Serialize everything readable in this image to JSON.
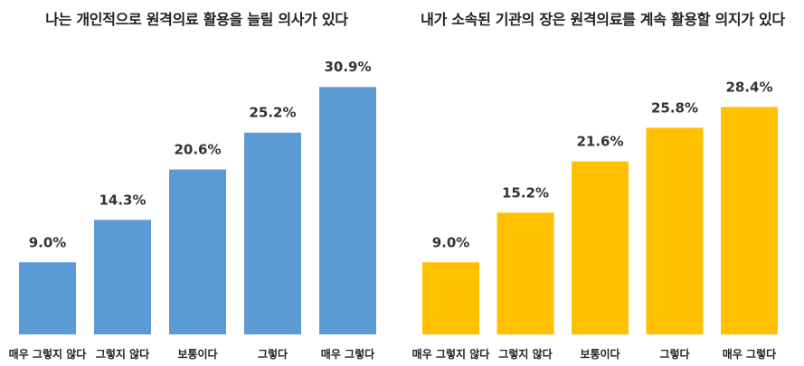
{
  "chart_data": [
    {
      "type": "bar",
      "title": "나는 개인적으로 원격의료 활용을 늘릴 의사가 있다",
      "categories": [
        "매우 그렇지 않다",
        "그렇지 않다",
        "보통이다",
        "그렇다",
        "매우 그렇다"
      ],
      "values": [
        9.0,
        14.3,
        20.6,
        25.2,
        30.9
      ],
      "value_labels": [
        "9.0%",
        "14.3%",
        "20.6%",
        "25.2%",
        "30.9%"
      ],
      "color": "#5b9bd5",
      "grid": false,
      "legend": "none"
    },
    {
      "type": "bar",
      "title": "내가 소속된 기관의 장은 원격의료를 계속 활용할 의지가 있다",
      "categories": [
        "매우 그렇지 않다",
        "그렇지 않다",
        "보통이다",
        "그렇다",
        "매우 그렇다"
      ],
      "values": [
        9.0,
        15.2,
        21.6,
        25.8,
        28.4
      ],
      "value_labels": [
        "9.0%",
        "15.2%",
        "21.6%",
        "25.8%",
        "28.4%"
      ],
      "color": "#ffc000",
      "grid": false,
      "legend": "none"
    }
  ]
}
